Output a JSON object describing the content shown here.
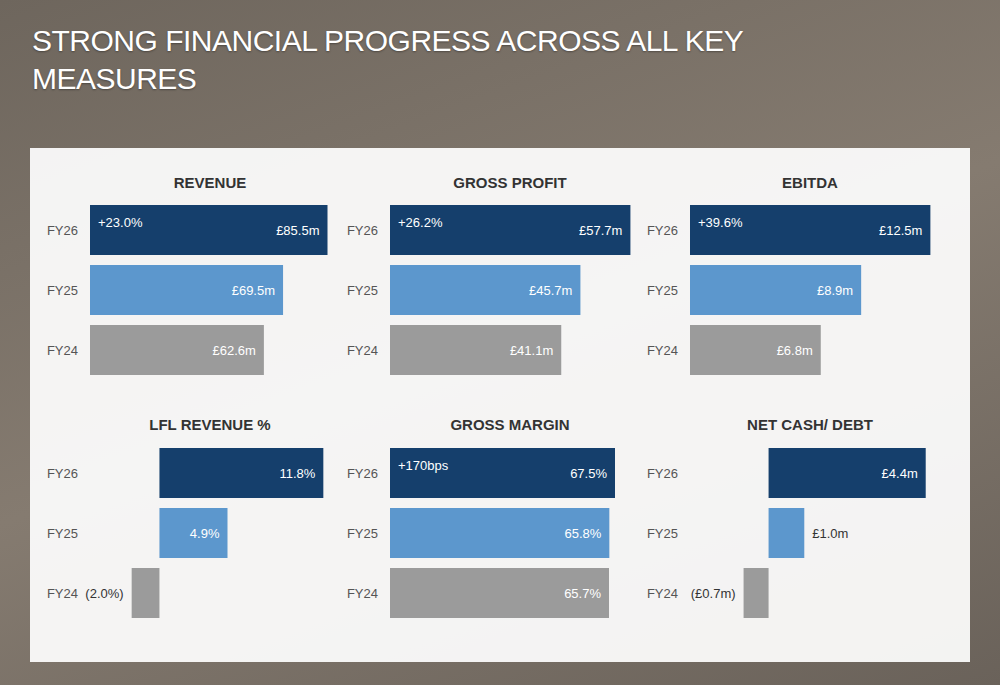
{
  "title": "STRONG FINANCIAL PROGRESS ACROSS ALL KEY MEASURES",
  "chart_data": [
    {
      "type": "bar",
      "title": "REVENUE",
      "orientation": "horizontal",
      "categories": [
        "FY26",
        "FY25",
        "FY24"
      ],
      "values": [
        85.5,
        69.5,
        62.6
      ],
      "value_labels": [
        "£85.5m",
        "£69.5m",
        "£62.6m"
      ],
      "data_labels": true,
      "colors": [
        "#153f6c",
        "#5c97cd",
        "#9b9b9b"
      ],
      "xlim": [
        0,
        90
      ],
      "tick_labels": "y",
      "grid": false,
      "annotations": [
        {
          "category": "FY26",
          "text": "+23.0%"
        }
      ]
    },
    {
      "type": "bar",
      "title": "GROSS PROFIT",
      "orientation": "horizontal",
      "categories": [
        "FY26",
        "FY25",
        "FY24"
      ],
      "values": [
        57.7,
        45.7,
        41.1
      ],
      "value_labels": [
        "£57.7m",
        "£45.7m",
        "£41.1m"
      ],
      "data_labels": true,
      "colors": [
        "#153f6c",
        "#5c97cd",
        "#9b9b9b"
      ],
      "xlim": [
        0,
        60
      ],
      "tick_labels": "y",
      "grid": false,
      "annotations": [
        {
          "category": "FY26",
          "text": "+26.2%"
        }
      ]
    },
    {
      "type": "bar",
      "title": "EBITDA",
      "orientation": "horizontal",
      "categories": [
        "FY26",
        "FY25",
        "FY24"
      ],
      "values": [
        12.5,
        8.9,
        6.8
      ],
      "value_labels": [
        "£12.5m",
        "£8.9m",
        "£6.8m"
      ],
      "data_labels": true,
      "colors": [
        "#153f6c",
        "#5c97cd",
        "#9b9b9b"
      ],
      "xlim": [
        0,
        13
      ],
      "tick_labels": "y",
      "grid": false,
      "annotations": [
        {
          "category": "FY26",
          "text": "+39.6%"
        }
      ]
    },
    {
      "type": "bar",
      "title": "LFL REVENUE %",
      "orientation": "horizontal",
      "categories": [
        "FY26",
        "FY25",
        "FY24"
      ],
      "values": [
        11.8,
        4.9,
        -2.0
      ],
      "value_labels": [
        "11.8%",
        "4.9%",
        "(2.0%)"
      ],
      "data_labels": true,
      "colors": [
        "#153f6c",
        "#5c97cd",
        "#9b9b9b"
      ],
      "xlim": [
        -5,
        13
      ],
      "tick_labels": "y",
      "grid": false
    },
    {
      "type": "bar",
      "title": "GROSS MARGIN",
      "orientation": "horizontal",
      "categories": [
        "FY26",
        "FY25",
        "FY24"
      ],
      "values": [
        67.5,
        65.8,
        65.7
      ],
      "value_labels": [
        "67.5%",
        "65.8%",
        "65.7%"
      ],
      "data_labels": true,
      "colors": [
        "#153f6c",
        "#5c97cd",
        "#9b9b9b"
      ],
      "xlim": [
        0,
        75
      ],
      "tick_labels": "y",
      "grid": false,
      "annotations": [
        {
          "category": "FY26",
          "text": "+170bps"
        }
      ]
    },
    {
      "type": "bar",
      "title": "NET CASH/ DEBT",
      "orientation": "horizontal",
      "categories": [
        "FY26",
        "FY25",
        "FY24"
      ],
      "values": [
        4.4,
        1.0,
        -0.7
      ],
      "value_labels": [
        "£4.4m",
        "£1.0m",
        "(£0.7m)"
      ],
      "data_labels": true,
      "colors": [
        "#153f6c",
        "#5c97cd",
        "#9b9b9b"
      ],
      "xlim": [
        -2.2,
        4.8
      ],
      "tick_labels": "y",
      "grid": false
    }
  ]
}
